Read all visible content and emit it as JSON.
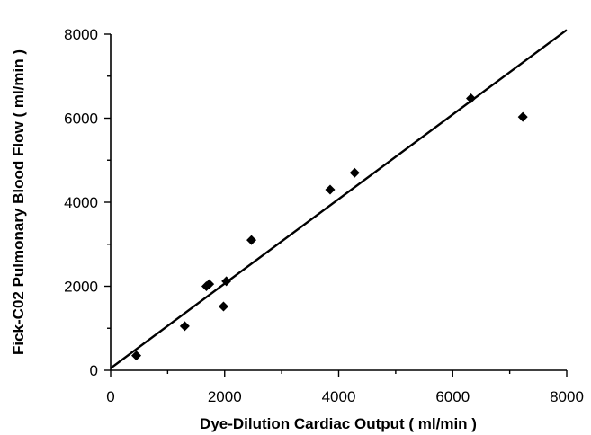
{
  "chart_data": {
    "type": "scatter",
    "title": "",
    "xlabel": "Dye-Dilution Cardiac Output  ( ml/min )",
    "ylabel": "Fick-C02 Pulmonary Blood Flow  ( ml/min )",
    "xlim": [
      0,
      8000
    ],
    "ylim": [
      0,
      8000
    ],
    "x_ticks": [
      0,
      2000,
      4000,
      6000,
      8000
    ],
    "y_ticks": [
      0,
      2000,
      4000,
      6000,
      8000
    ],
    "x_tick_labels": [
      "0",
      "2000",
      "4000",
      "6000",
      "8000"
    ],
    "y_tick_labels": [
      "0",
      "2000",
      "4000",
      "6000",
      "8000"
    ],
    "grid": false,
    "series": [
      {
        "points": [
          {
            "x": 450,
            "y": 350
          },
          {
            "x": 1300,
            "y": 1050
          },
          {
            "x": 1680,
            "y": 2000
          },
          {
            "x": 1730,
            "y": 2050
          },
          {
            "x": 1980,
            "y": 1520
          },
          {
            "x": 2030,
            "y": 2120
          },
          {
            "x": 2470,
            "y": 3100
          },
          {
            "x": 3850,
            "y": 4300
          },
          {
            "x": 4280,
            "y": 4700
          },
          {
            "x": 6320,
            "y": 6470
          },
          {
            "x": 7230,
            "y": 6030
          }
        ]
      }
    ],
    "fit_line": {
      "x": [
        0,
        8000
      ],
      "y": [
        50,
        8100
      ]
    }
  }
}
